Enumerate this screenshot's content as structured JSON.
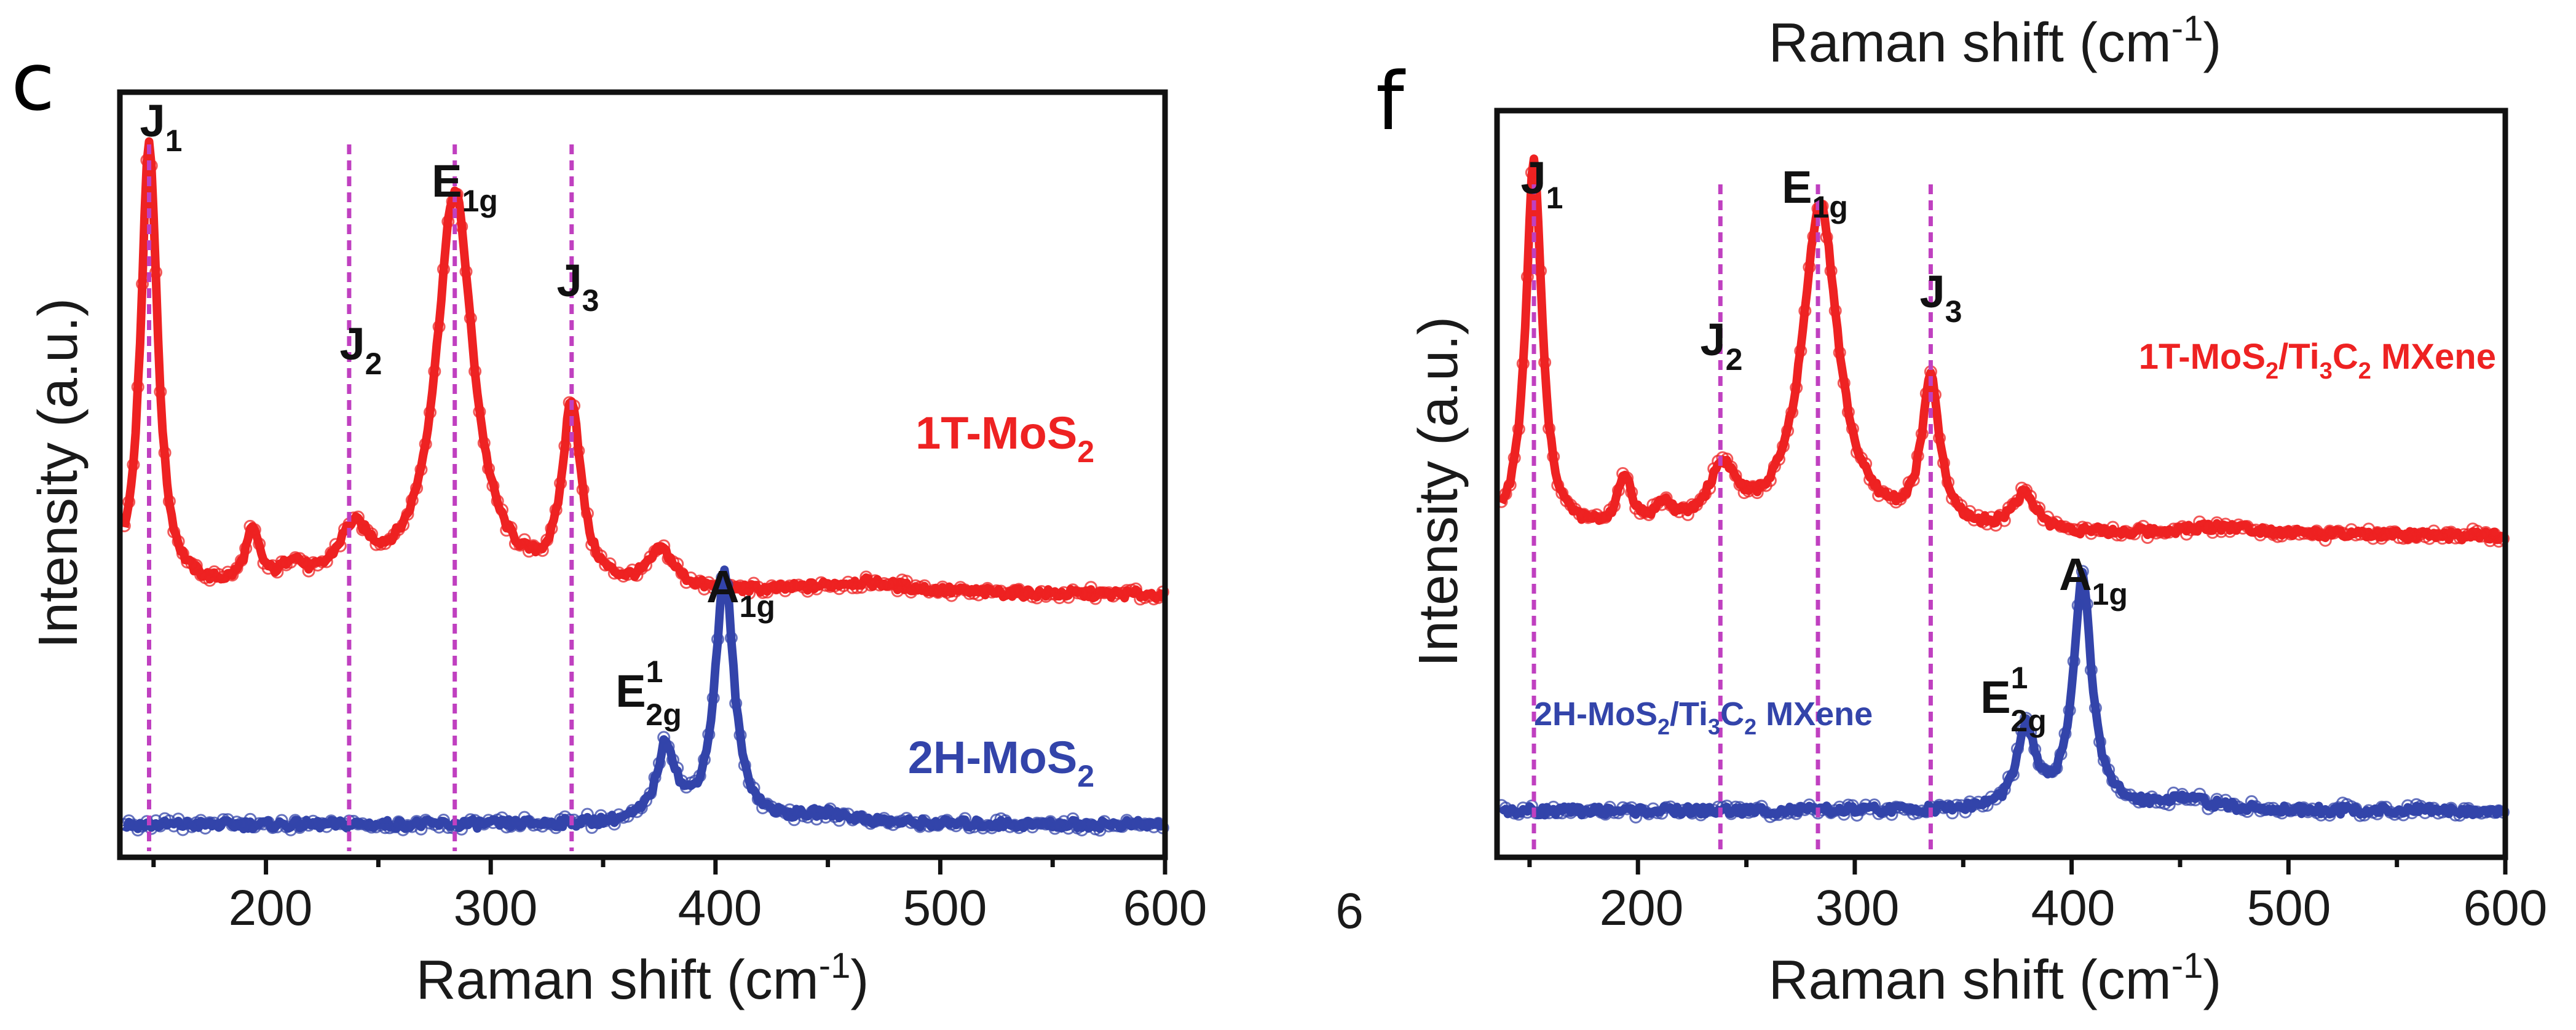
{
  "panels": {
    "c": {
      "letter": "c",
      "xlabel": "Raman shift (cm",
      "xlabel_sup": "-1",
      "xlabel_end": ")",
      "ylabel": "Intensity (a.u.)",
      "xticks": [
        "200",
        "300",
        "400",
        "500",
        "600"
      ],
      "peaks": {
        "J1": {
          "main": "J",
          "sub": "1"
        },
        "J2": {
          "main": "J",
          "sub": "2"
        },
        "E1g": {
          "main": "E",
          "sub": "1g"
        },
        "J3": {
          "main": "J",
          "sub": "3"
        },
        "E2g": {
          "main": "E",
          "sup": "1",
          "sub": "2g"
        },
        "A1g": {
          "main": "A",
          "sub": "1g"
        }
      },
      "series_labels": {
        "top": {
          "pre": "1T-MoS",
          "sub": "2",
          "post": ""
        },
        "bottom": {
          "pre": "2H-MoS",
          "sub": "2",
          "post": ""
        }
      }
    },
    "f": {
      "letter": "f",
      "title": "Raman shift (cm",
      "title_sup": "-1",
      "title_end": ")",
      "stray": "6",
      "xlabel": "Raman shift (cm",
      "xlabel_sup": "-1",
      "xlabel_end": ")",
      "ylabel": "Intensity (a.u.)",
      "xticks": [
        "200",
        "300",
        "400",
        "500",
        "600"
      ],
      "peaks": {
        "J1": {
          "main": "J",
          "sub": "1"
        },
        "J2": {
          "main": "J",
          "sub": "2"
        },
        "E1g": {
          "main": "E",
          "sub": "1g"
        },
        "J3": {
          "main": "J",
          "sub": "3"
        },
        "E2g": {
          "main": "E",
          "sup": "1",
          "sub": "2g"
        },
        "A1g": {
          "main": "A",
          "sub": "1g"
        }
      },
      "series_labels": {
        "top": {
          "pre": "1T-MoS",
          "sub": "2",
          "mid": "/Ti",
          "sub2": "3",
          "mid2": "C",
          "sub3": "2",
          "post": " MXene"
        },
        "bottom": {
          "pre": "2H-MoS",
          "sub": "2",
          "mid": "/Ti",
          "sub2": "3",
          "mid2": "C",
          "sub3": "2",
          "post": " MXene"
        }
      }
    }
  },
  "chart_data": [
    {
      "type": "line",
      "panel": "c",
      "title": "",
      "xlabel": "Raman shift (cm-1)",
      "ylabel": "Intensity (a.u.)",
      "xlim": [
        135,
        600
      ],
      "ylim": [
        0,
        1
      ],
      "colors": {
        "top": "#ee2222",
        "bottom": "#3344aa",
        "guide": "#c040c0"
      },
      "reference_lines_x": [
        148,
        237,
        284,
        336
      ],
      "series": [
        {
          "name": "1T-MoS2",
          "baseline": 0.34,
          "peaks": [
            {
              "x": 148,
              "height": 0.6,
              "width": 4.5
            },
            {
              "x": 194,
              "height": 0.07,
              "width": 4
            },
            {
              "x": 212,
              "height": 0.03,
              "width": 5
            },
            {
              "x": 239,
              "height": 0.07,
              "width": 9
            },
            {
              "x": 284,
              "height": 0.53,
              "width": 10
            },
            {
              "x": 336,
              "height": 0.24,
              "width": 5
            },
            {
              "x": 376,
              "height": 0.05,
              "width": 7
            },
            {
              "x": 465,
              "height": 0.015,
              "width": 25
            }
          ]
        },
        {
          "name": "2H-MoS2",
          "baseline": 0.035,
          "peaks": [
            {
              "x": 378,
              "height": 0.1,
              "width": 5
            },
            {
              "x": 404,
              "height": 0.33,
              "width": 5
            },
            {
              "x": 450,
              "height": 0.012,
              "width": 15
            }
          ]
        }
      ]
    },
    {
      "type": "line",
      "panel": "f",
      "title": "",
      "xlabel": "Raman shift (cm-1)",
      "ylabel": "Intensity (a.u.)",
      "xlim": [
        135,
        600
      ],
      "ylim": [
        0,
        1
      ],
      "colors": {
        "top": "#ee2222",
        "bottom": "#3344aa",
        "guide": "#c040c0"
      },
      "reference_lines_x": [
        152,
        238,
        283,
        335
      ],
      "series": [
        {
          "name": "1T-MoS2/Ti3C2 MXene",
          "baseline": 0.43,
          "peaks": [
            {
              "x": 152,
              "height": 0.51,
              "width": 4.5
            },
            {
              "x": 194,
              "height": 0.07,
              "width": 4
            },
            {
              "x": 212,
              "height": 0.03,
              "width": 5
            },
            {
              "x": 239,
              "height": 0.08,
              "width": 8
            },
            {
              "x": 284,
              "height": 0.45,
              "width": 10
            },
            {
              "x": 335,
              "height": 0.2,
              "width": 5
            },
            {
              "x": 378,
              "height": 0.05,
              "width": 7
            },
            {
              "x": 470,
              "height": 0.012,
              "width": 25
            }
          ]
        },
        {
          "name": "2H-MoS2/Ti3C2 MXene",
          "baseline": 0.055,
          "peaks": [
            {
              "x": 379,
              "height": 0.11,
              "width": 5
            },
            {
              "x": 405,
              "height": 0.32,
              "width": 5
            },
            {
              "x": 452,
              "height": 0.015,
              "width": 14
            }
          ]
        }
      ]
    }
  ]
}
